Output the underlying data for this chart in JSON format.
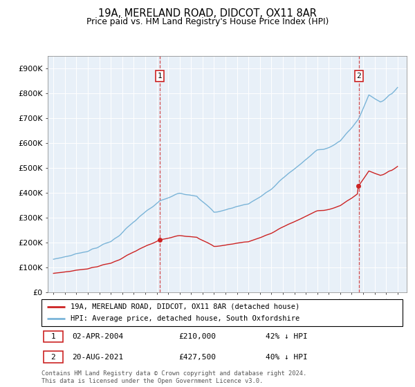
{
  "title1": "19A, MERELAND ROAD, DIDCOT, OX11 8AR",
  "title2": "Price paid vs. HM Land Registry's House Price Index (HPI)",
  "ylim": [
    0,
    950000
  ],
  "yticks": [
    0,
    100000,
    200000,
    300000,
    400000,
    500000,
    600000,
    700000,
    800000,
    900000
  ],
  "ytick_labels": [
    "£0",
    "£100K",
    "£200K",
    "£300K",
    "£400K",
    "£500K",
    "£600K",
    "£700K",
    "£800K",
    "£900K"
  ],
  "hpi_color": "#7ab4d8",
  "price_color": "#cc2222",
  "marker1_year": 2004.25,
  "marker1_date_str": "02-APR-2004",
  "marker1_price": 210000,
  "marker1_hpi_pct": "42% ↓ HPI",
  "marker2_year": 2021.62,
  "marker2_date_str": "20-AUG-2021",
  "marker2_price": 427500,
  "marker2_hpi_pct": "40% ↓ HPI",
  "legend_line1": "19A, MERELAND ROAD, DIDCOT, OX11 8AR (detached house)",
  "legend_line2": "HPI: Average price, detached house, South Oxfordshire",
  "footnote": "Contains HM Land Registry data © Crown copyright and database right 2024.\nThis data is licensed under the Open Government Licence v3.0.",
  "xmin": 1994.5,
  "xmax": 2025.8
}
